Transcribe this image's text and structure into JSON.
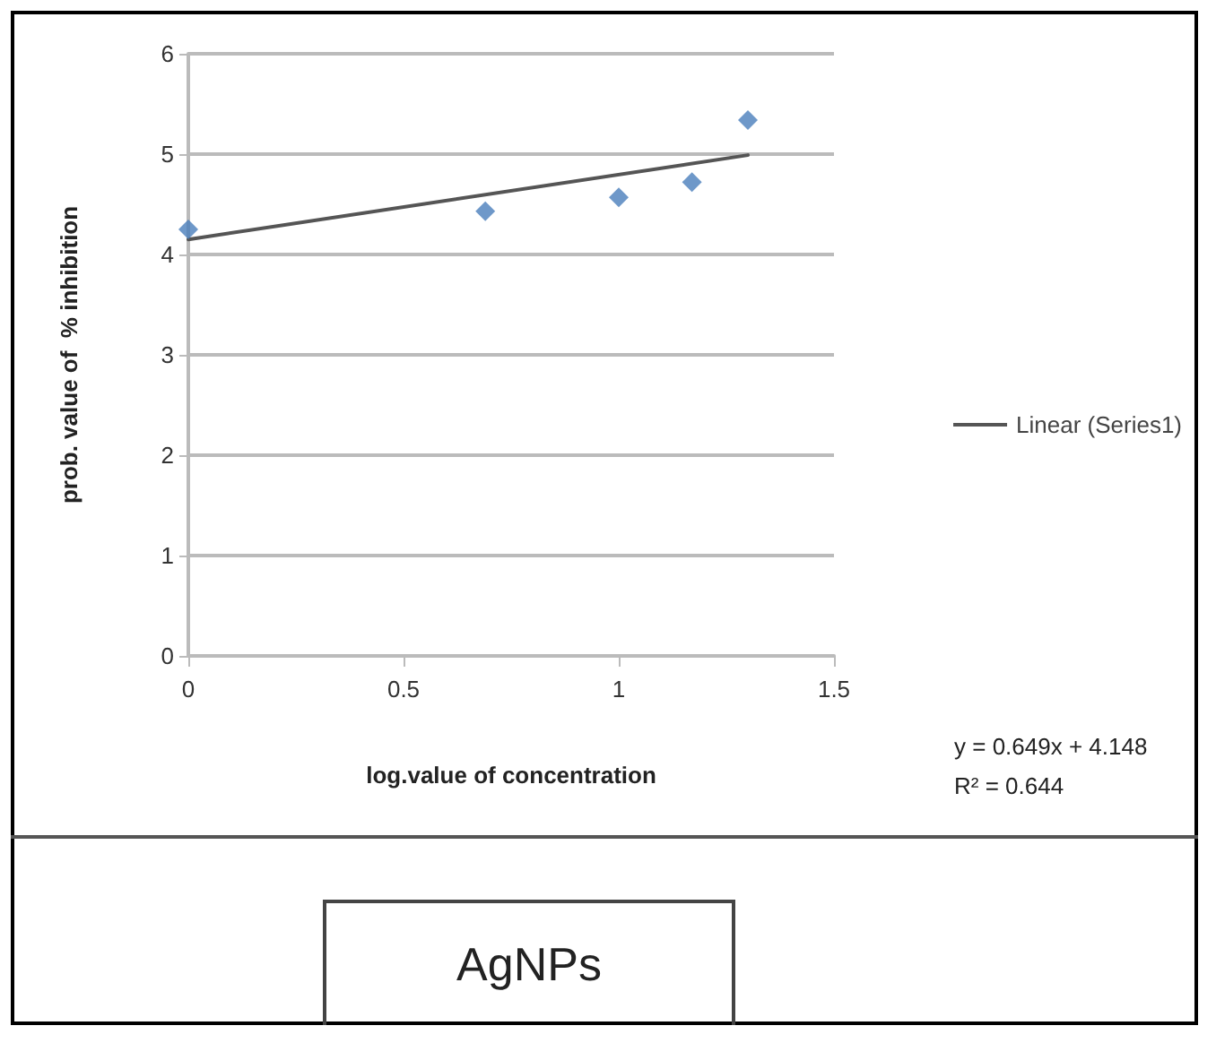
{
  "chart_data": {
    "type": "scatter",
    "xlabel": "log.value of concentration",
    "ylabel": "prob. value of  % inhibition",
    "series": [
      {
        "color": "#4a7ebb",
        "marker": "diamond",
        "x": [
          0,
          0.69,
          1.0,
          1.17,
          1.3
        ],
        "values": [
          4.25,
          4.43,
          4.57,
          4.72,
          5.34
        ]
      },
      {
        "type": "line",
        "name": "Linear (Series1)",
        "color": "#555555",
        "marker": "none",
        "x": [
          0,
          1.3
        ],
        "values": [
          4.15,
          4.99
        ]
      }
    ],
    "xlim": [
      0,
      1.5
    ],
    "xticks": [
      0,
      0.5,
      1,
      1.5
    ],
    "ylim": [
      0,
      6
    ],
    "yticks": [
      0,
      1,
      2,
      3,
      4,
      5,
      6
    ],
    "grid": "y",
    "legend": "right",
    "annotations": [
      "y = 0.649x + 4.148",
      "R² = 0.644",
      "AgNPs"
    ]
  }
}
